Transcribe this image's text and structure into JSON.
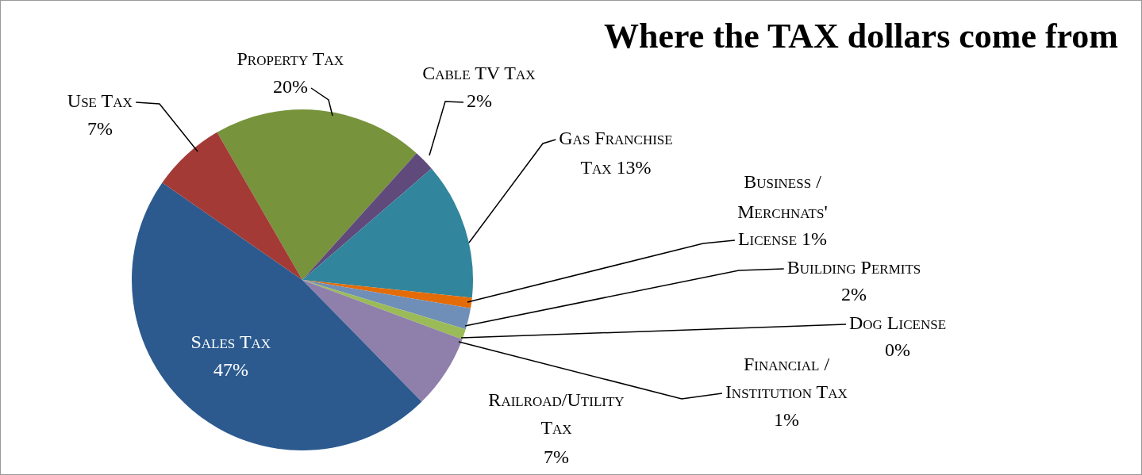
{
  "chart_data": {
    "type": "pie",
    "title": "Where the TAX dollars come from",
    "categories": [
      "Property Tax",
      "Cable TV Tax",
      "Gas Franchise Tax",
      "Business / Merchnats' License",
      "Building Permits",
      "Dog License",
      "Financial / Institution Tax",
      "Railroad/Utility Tax",
      "Sales Tax",
      "Use Tax"
    ],
    "values": [
      20,
      2,
      13,
      1,
      2,
      0,
      1,
      7,
      47,
      7
    ],
    "value_labels": [
      "20%",
      "2%",
      "13%",
      "1%",
      "2%",
      "0%",
      "1%",
      "7%",
      "47%",
      "7%"
    ],
    "colors": [
      "#77933c",
      "#5f4a7b",
      "#31859c",
      "#e36c09",
      "#6f8fb8",
      "#c0504d",
      "#9bbb59",
      "#8f7fab",
      "#2c5a8f",
      "#a33a36"
    ],
    "legend": false
  }
}
